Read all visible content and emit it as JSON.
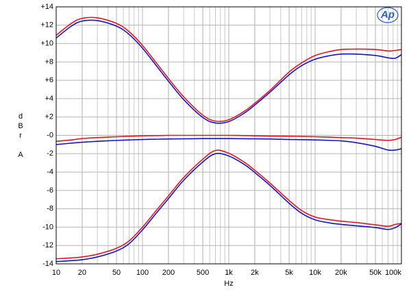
{
  "chart_data": {
    "type": "line",
    "logo": "Ap",
    "x_label": "Hz",
    "y_label": "dBr A",
    "xlim": [
      10,
      100000
    ],
    "ylim": [
      -14,
      14
    ],
    "xlog": true,
    "grid": true,
    "xticks": [
      10,
      20,
      50,
      100,
      200,
      500,
      {
        "value": 1000,
        "label": "1k"
      },
      {
        "value": 2000,
        "label": "2k"
      },
      {
        "value": 5000,
        "label": "5k"
      },
      {
        "value": 10000,
        "label": "10k"
      },
      {
        "value": 20000,
        "label": "20k"
      },
      {
        "value": 50000,
        "label": "50k"
      },
      {
        "value": 100000,
        "label": "100k"
      }
    ],
    "yticks": [
      {
        "value": 14,
        "label": "+14"
      },
      {
        "value": 12,
        "label": "+12"
      },
      {
        "value": 10,
        "label": "+10"
      },
      {
        "value": 8,
        "label": "+8"
      },
      {
        "value": 6,
        "label": "+6"
      },
      {
        "value": 4,
        "label": "+4"
      },
      {
        "value": 2,
        "label": "+2"
      },
      {
        "value": 0,
        "label": "-0"
      },
      -2,
      -4,
      -6,
      -8,
      -10,
      -12,
      -14
    ],
    "x": [
      10,
      15,
      20,
      30,
      50,
      70,
      100,
      150,
      200,
      300,
      500,
      700,
      1000,
      1500,
      2000,
      3000,
      5000,
      7000,
      10000,
      15000,
      20000,
      30000,
      50000,
      70000,
      85000,
      100000
    ],
    "series": [
      {
        "color": "#e8141c",
        "values": [
          10.9,
          12.2,
          12.75,
          12.8,
          12.2,
          11.3,
          9.8,
          7.7,
          6.2,
          4.2,
          2.2,
          1.55,
          1.7,
          2.6,
          3.5,
          4.9,
          6.9,
          7.9,
          8.7,
          9.15,
          9.35,
          9.4,
          9.35,
          9.2,
          9.25,
          9.35
        ]
      },
      {
        "color": "#1414c8",
        "values": [
          10.6,
          11.9,
          12.45,
          12.5,
          11.9,
          11.0,
          9.5,
          7.4,
          5.9,
          3.9,
          1.95,
          1.35,
          1.5,
          2.4,
          3.3,
          4.7,
          6.6,
          7.6,
          8.3,
          8.7,
          8.85,
          8.85,
          8.7,
          8.45,
          8.4,
          8.8
        ]
      },
      {
        "color": "#e8141c",
        "values": [
          -0.65,
          -0.5,
          -0.35,
          -0.25,
          -0.15,
          -0.1,
          -0.05,
          -0.02,
          0,
          0,
          0,
          0,
          0,
          -0.02,
          -0.05,
          -0.08,
          -0.1,
          -0.12,
          -0.15,
          -0.2,
          -0.25,
          -0.3,
          -0.45,
          -0.55,
          -0.45,
          -0.2
        ]
      },
      {
        "color": "#1414c8",
        "values": [
          -1.0,
          -0.85,
          -0.75,
          -0.65,
          -0.55,
          -0.5,
          -0.45,
          -0.42,
          -0.4,
          -0.38,
          -0.35,
          -0.35,
          -0.35,
          -0.37,
          -0.38,
          -0.4,
          -0.45,
          -0.47,
          -0.5,
          -0.55,
          -0.6,
          -0.8,
          -1.2,
          -1.6,
          -1.6,
          -1.45
        ]
      },
      {
        "color": "#e8141c",
        "values": [
          -13.45,
          -13.35,
          -13.25,
          -12.95,
          -12.3,
          -11.5,
          -10.0,
          -8.0,
          -6.6,
          -4.6,
          -2.6,
          -1.65,
          -1.95,
          -2.9,
          -3.8,
          -5.2,
          -7.1,
          -8.2,
          -8.9,
          -9.2,
          -9.35,
          -9.5,
          -9.75,
          -9.9,
          -9.7,
          -9.6
        ]
      },
      {
        "color": "#1414c8",
        "values": [
          -13.75,
          -13.65,
          -13.55,
          -13.25,
          -12.6,
          -11.8,
          -10.3,
          -8.3,
          -6.9,
          -4.9,
          -2.9,
          -2.0,
          -2.25,
          -3.15,
          -4.05,
          -5.45,
          -7.4,
          -8.5,
          -9.2,
          -9.55,
          -9.7,
          -9.85,
          -10.05,
          -10.25,
          -10.05,
          -9.65
        ]
      }
    ]
  }
}
